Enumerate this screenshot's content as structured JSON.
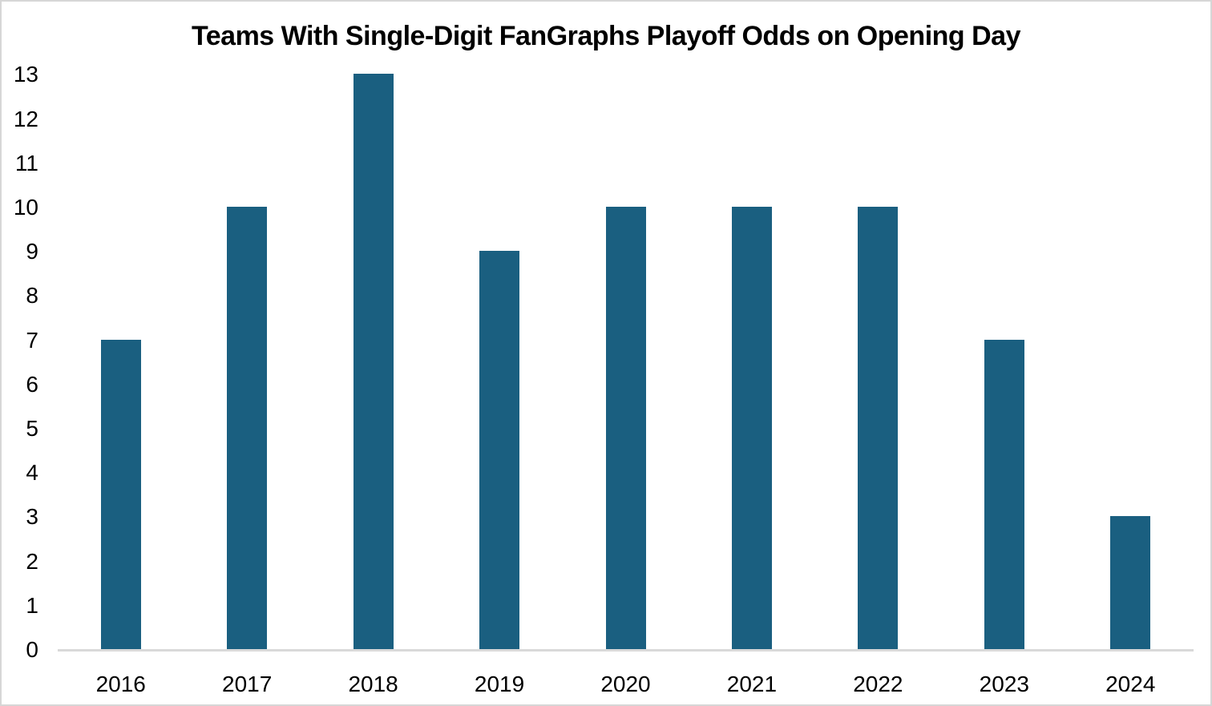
{
  "chart_data": {
    "type": "bar",
    "title": "Teams With Single-Digit FanGraphs Playoff Odds on Opening Day",
    "categories": [
      "2016",
      "2017",
      "2018",
      "2019",
      "2020",
      "2021",
      "2022",
      "2023",
      "2024"
    ],
    "values": [
      7,
      10,
      13,
      9,
      10,
      10,
      10,
      7,
      3
    ],
    "xlabel": "",
    "ylabel": "",
    "ylim": [
      0,
      13
    ],
    "ytick_step": 1,
    "grid": false,
    "legend_position": "none",
    "bar_color": "#1A5F80",
    "axis_line_color": "#D9D9D9",
    "text_color": "#000000",
    "frame_border_color": "#D6D6D6",
    "background_color": "#FFFFFF"
  }
}
